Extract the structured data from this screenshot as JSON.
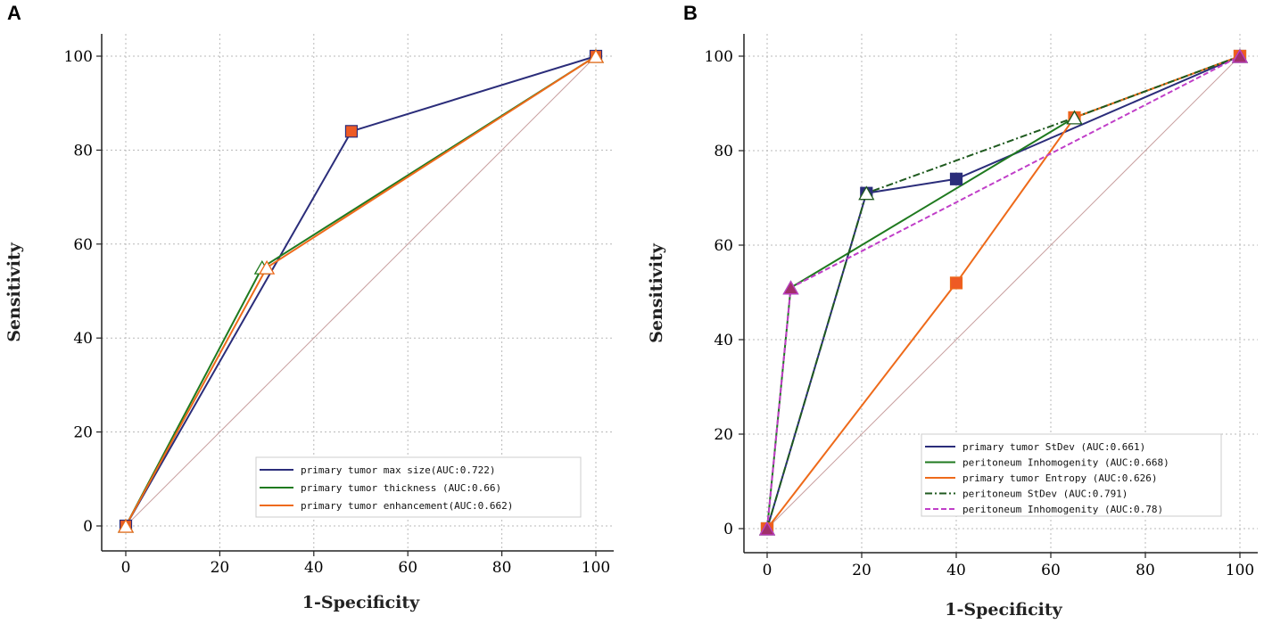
{
  "chart_data": [
    {
      "type": "line",
      "panel_label": "A",
      "xlabel": "1-Specificity",
      "ylabel": "Sensitivity",
      "xlim": [
        0,
        100
      ],
      "ylim": [
        0,
        100
      ],
      "xticks": [
        0,
        20,
        40,
        60,
        80,
        100
      ],
      "yticks": [
        0,
        20,
        40,
        60,
        80,
        100
      ],
      "grid": true,
      "legend_position": "bottom-right",
      "reference_line": {
        "x": [
          0,
          100
        ],
        "y": [
          0,
          100
        ],
        "color": "#c9a0a0"
      },
      "series": [
        {
          "name": "primary tumor max size(AUC:0.722)",
          "color": "#2b2d7a",
          "dash": "",
          "x": [
            0,
            48,
            100
          ],
          "y": [
            0,
            84,
            100
          ],
          "marker": "square",
          "marker_color": "#ee5a24"
        },
        {
          "name": "primary tumor thickness (AUC:0.66)",
          "color": "#1f7a1f",
          "dash": "",
          "x": [
            0,
            29,
            100
          ],
          "y": [
            0,
            55,
            100
          ],
          "marker": "triangle",
          "marker_color": "#ffffff"
        },
        {
          "name": "primary tumor enhancement(AUC:0.662)",
          "color": "#ee6a1a",
          "dash": "",
          "x": [
            0,
            30,
            100
          ],
          "y": [
            0,
            55,
            100
          ],
          "marker": "triangle",
          "marker_color": "#ffffff"
        }
      ]
    },
    {
      "type": "line",
      "panel_label": "B",
      "xlabel": "1-Specificity",
      "ylabel": "Sensitivity",
      "xlim": [
        0,
        100
      ],
      "ylim": [
        0,
        100
      ],
      "xticks": [
        0,
        20,
        40,
        60,
        80,
        100
      ],
      "yticks": [
        0,
        20,
        40,
        60,
        80,
        100
      ],
      "grid": true,
      "legend_position": "bottom-right",
      "reference_line": {
        "x": [
          0,
          100
        ],
        "y": [
          0,
          100
        ],
        "color": "#c9a0a0"
      },
      "series": [
        {
          "name": "primary tumor StDev  (AUC:0.661)",
          "color": "#2b2d7a",
          "dash": "",
          "x": [
            0,
            21,
            40,
            100
          ],
          "y": [
            0,
            71,
            74,
            100
          ],
          "marker": "square",
          "marker_color": "#2b2d7a"
        },
        {
          "name": "peritoneum Inhomogenity  (AUC:0.668)",
          "color": "#1f7a1f",
          "dash": "",
          "x": [
            0,
            5,
            65,
            100
          ],
          "y": [
            0,
            51,
            87,
            100
          ],
          "marker": "triangle",
          "marker_color": "#ffffff"
        },
        {
          "name": "primary tumor Entropy  (AUC:0.626)",
          "color": "#ee6a1a",
          "dash": "",
          "x": [
            0,
            40,
            65,
            100
          ],
          "y": [
            0,
            52,
            87,
            100
          ],
          "marker": "square",
          "marker_color": "#ee5a24"
        },
        {
          "name": "peritoneum StDev  (AUC:0.791)",
          "color": "#1f5a1f",
          "dash": "8,3,2,3",
          "x": [
            0,
            21,
            65,
            100
          ],
          "y": [
            0,
            71,
            87,
            100
          ],
          "marker": "triangle",
          "marker_color": "#ffffff"
        },
        {
          "name": "peritoneum Inhomogenity  (AUC:0.78)",
          "color": "#c03ec8",
          "dash": "6,3",
          "x": [
            0,
            5,
            100
          ],
          "y": [
            0,
            51,
            100
          ],
          "marker": "triangle",
          "marker_color": "#a0306a"
        }
      ]
    }
  ]
}
